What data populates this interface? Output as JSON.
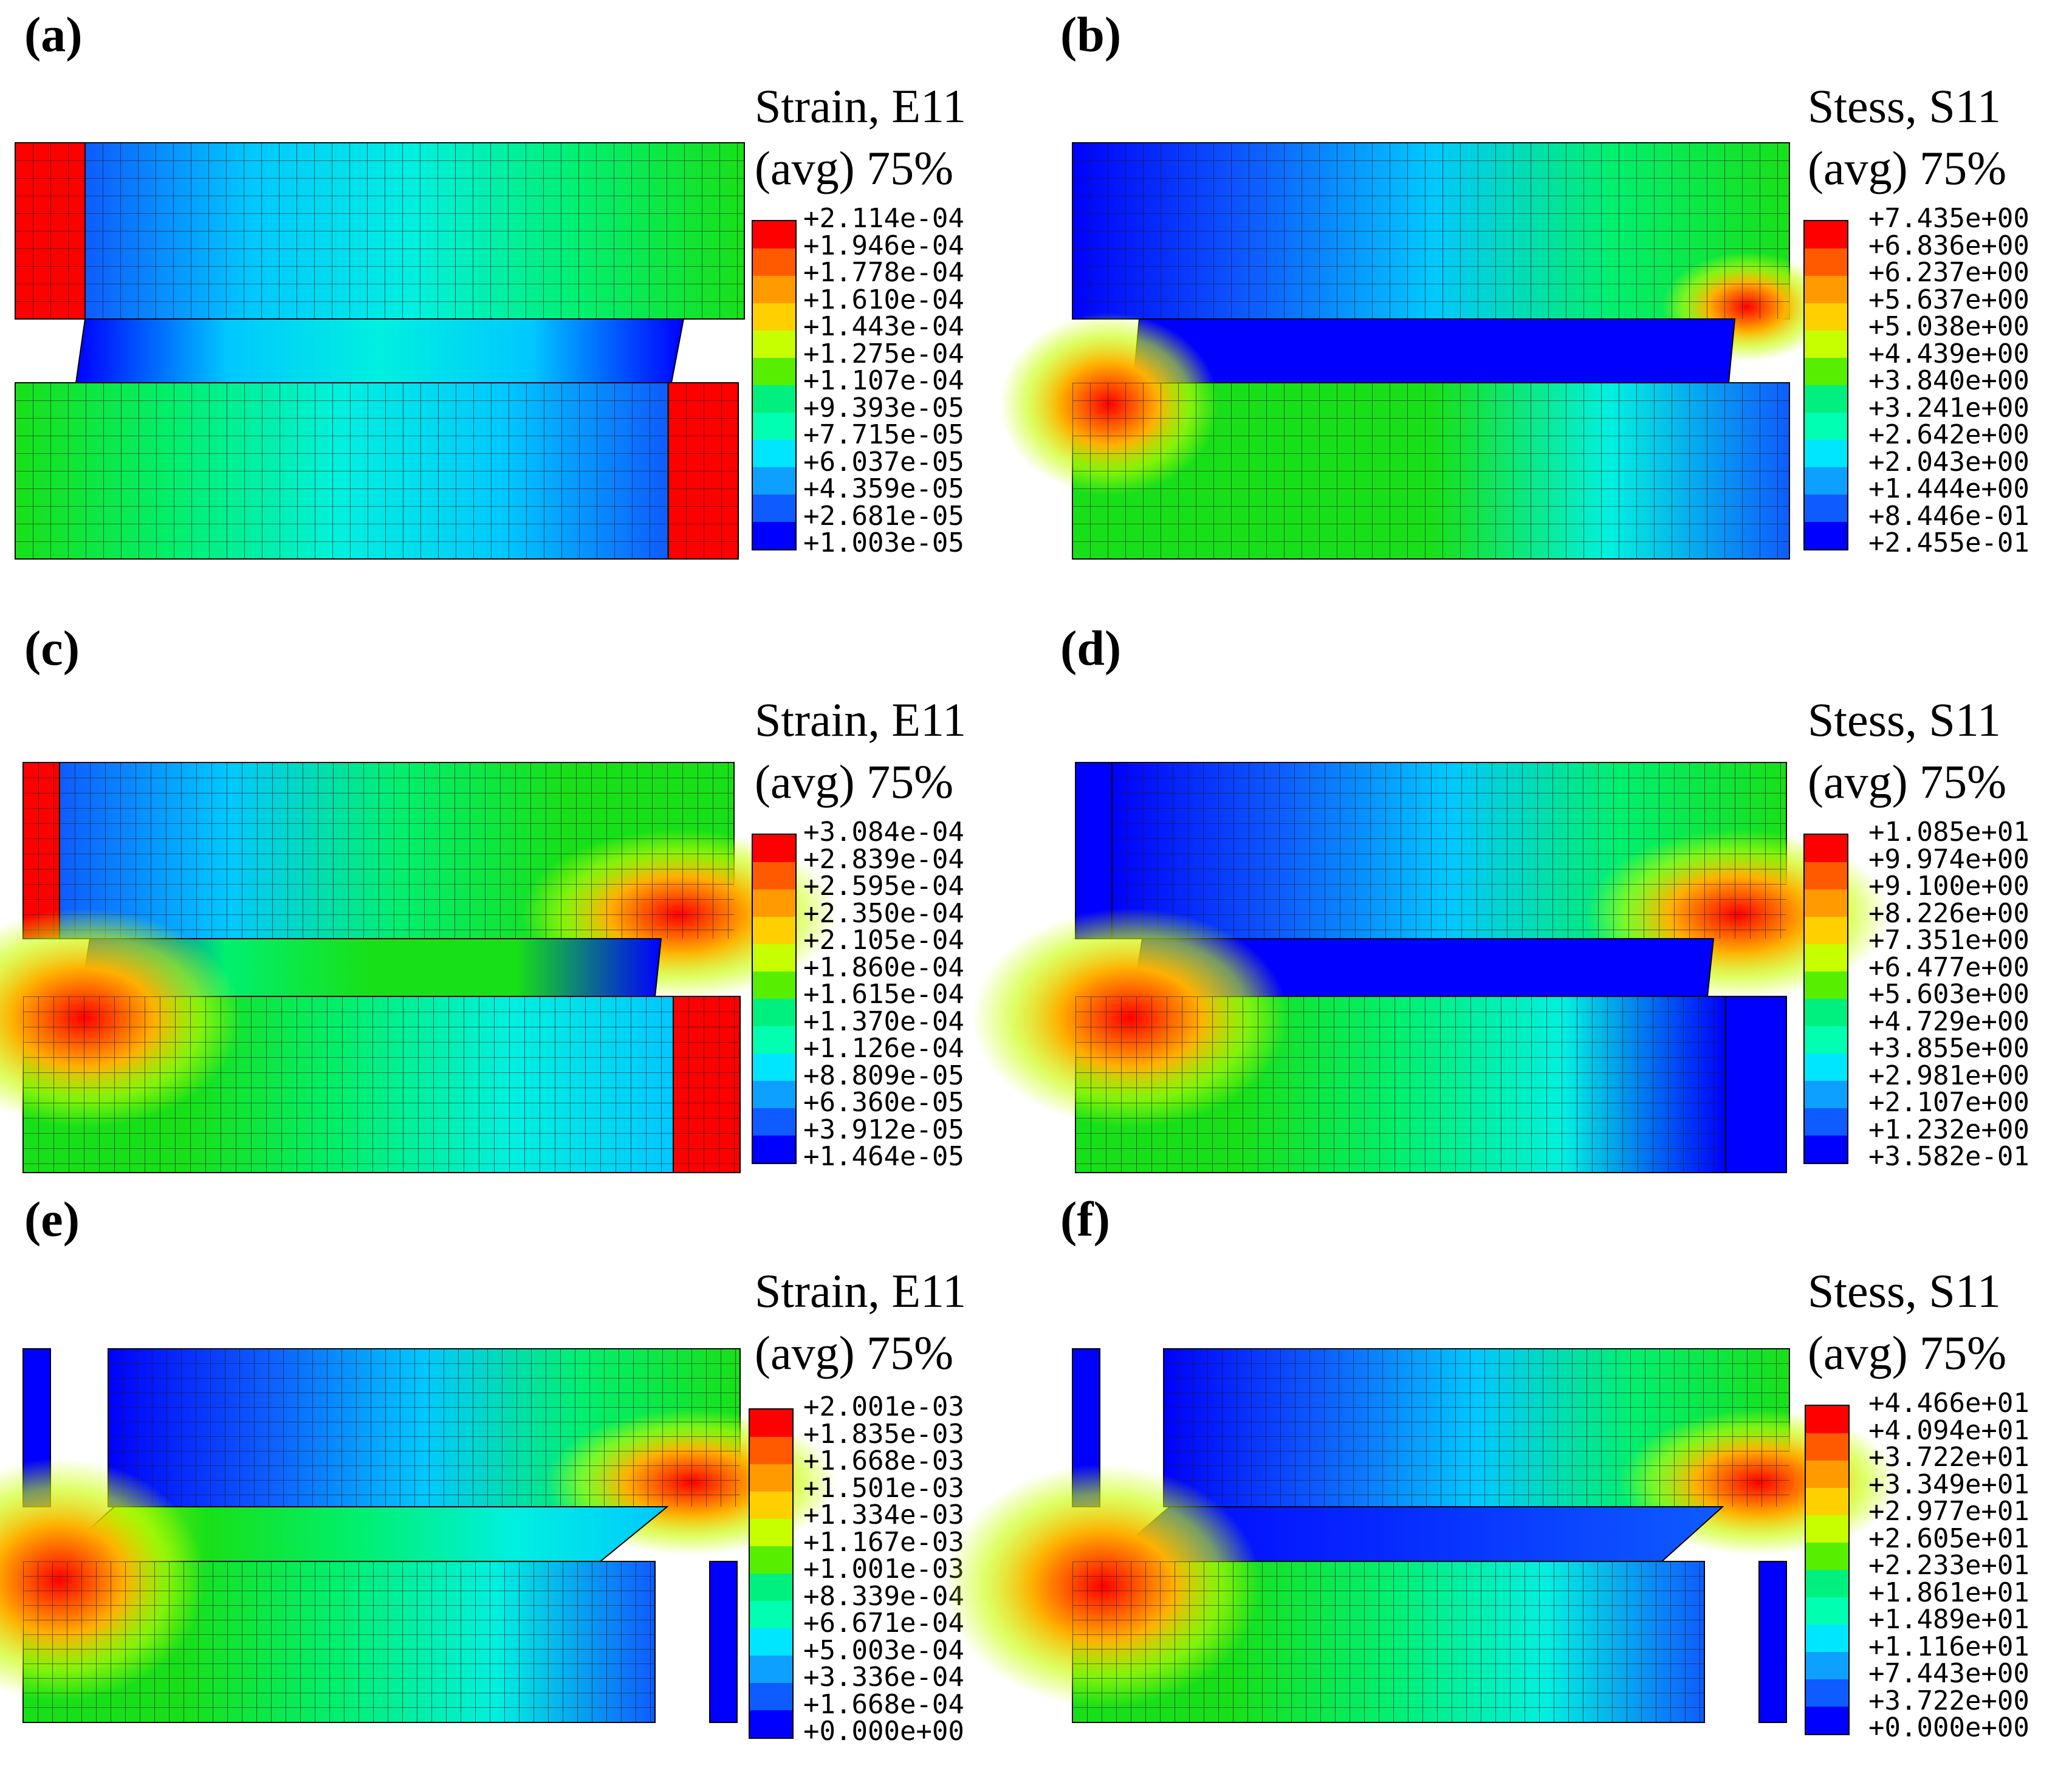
{
  "colors": {
    "scale": [
      "#0000ff",
      "#0e5cff",
      "#0ea0ff",
      "#00e6ff",
      "#00ffb0",
      "#00f080",
      "#18e018",
      "#58ee00",
      "#c8ff00",
      "#ffd000",
      "#ff9a00",
      "#ff5a00",
      "#ff0000"
    ]
  },
  "panels": [
    {
      "id": "a",
      "label": "(a)",
      "title": "Strain, E11",
      "subtitle": "(avg) 75%",
      "ticks": [
        "+2.114e-04",
        "+1.946e-04",
        "+1.778e-04",
        "+1.610e-04",
        "+1.443e-04",
        "+1.275e-04",
        "+1.107e-04",
        "+9.393e-05",
        "+7.715e-05",
        "+6.037e-05",
        "+4.359e-05",
        "+2.681e-05",
        "+1.003e-05"
      ]
    },
    {
      "id": "b",
      "label": "(b)",
      "title": "Stess, S11",
      "subtitle": "(avg) 75%",
      "ticks": [
        "+7.435e+00",
        "+6.836e+00",
        "+6.237e+00",
        "+5.637e+00",
        "+5.038e+00",
        "+4.439e+00",
        "+3.840e+00",
        "+3.241e+00",
        "+2.642e+00",
        "+2.043e+00",
        "+1.444e+00",
        "+8.446e-01",
        "+2.455e-01"
      ]
    },
    {
      "id": "c",
      "label": "(c)",
      "title": "Strain, E11",
      "subtitle": "(avg) 75%",
      "ticks": [
        "+3.084e-04",
        "+2.839e-04",
        "+2.595e-04",
        "+2.350e-04",
        "+2.105e-04",
        "+1.860e-04",
        "+1.615e-04",
        "+1.370e-04",
        "+1.126e-04",
        "+8.809e-05",
        "+6.360e-05",
        "+3.912e-05",
        "+1.464e-05"
      ]
    },
    {
      "id": "d",
      "label": "(d)",
      "title": "Stess, S11",
      "subtitle": "(avg) 75%",
      "ticks": [
        "+1.085e+01",
        "+9.974e+00",
        "+9.100e+00",
        "+8.226e+00",
        "+7.351e+00",
        "+6.477e+00",
        "+5.603e+00",
        "+4.729e+00",
        "+3.855e+00",
        "+2.981e+00",
        "+2.107e+00",
        "+1.232e+00",
        "+3.582e-01"
      ]
    },
    {
      "id": "e",
      "label": "(e)",
      "title": "Strain, E11",
      "subtitle": "(avg) 75%",
      "ticks": [
        "+2.001e-03",
        "+1.835e-03",
        "+1.668e-03",
        "+1.501e-03",
        "+1.334e-03",
        "+1.167e-03",
        "+1.001e-03",
        "+8.339e-04",
        "+6.671e-04",
        "+5.003e-04",
        "+3.336e-04",
        "+1.668e-04",
        "+0.000e+00"
      ]
    },
    {
      "id": "f",
      "label": "(f)",
      "title": "Stess, S11",
      "subtitle": "(avg) 75%",
      "ticks": [
        "+4.466e+01",
        "+4.094e+01",
        "+3.722e+01",
        "+3.349e+01",
        "+2.977e+01",
        "+2.605e+01",
        "+2.233e+01",
        "+1.861e+01",
        "+1.489e+01",
        "+1.116e+01",
        "+7.443e+00",
        "+3.722e+00",
        "+0.000e+00"
      ]
    }
  ]
}
